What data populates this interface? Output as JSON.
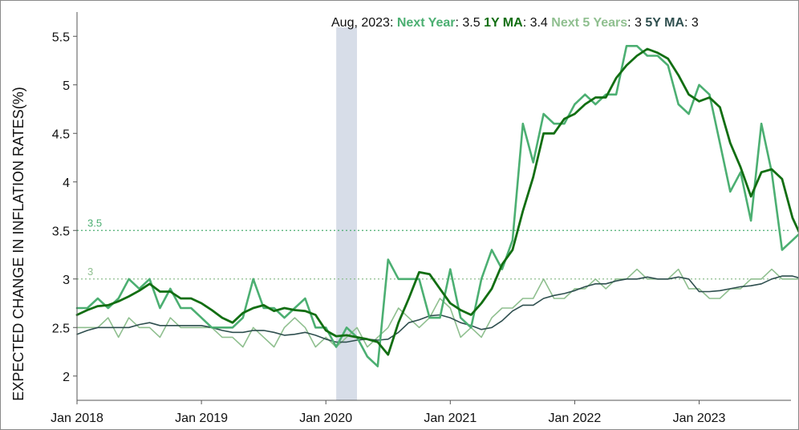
{
  "chart_data": {
    "type": "line",
    "ylabel": "EXPECTED CHANGE IN INFLATION RATES(%)",
    "ylim": [
      1.75,
      5.75
    ],
    "y_ticks": [
      "2",
      "2.5",
      "3",
      "3.5",
      "4",
      "4.5",
      "5",
      "5.5"
    ],
    "x_ticks": [
      "Jan 2018",
      "Jan 2019",
      "Jan 2020",
      "Jan 2021",
      "Jan 2022",
      "Jan 2023"
    ],
    "x_range": [
      "2018-01",
      "2023-08"
    ],
    "recession_band": {
      "start": "2020-02",
      "end": "2020-04"
    },
    "reference_lines": [
      {
        "value": 3.5,
        "label": "3.5",
        "color": "#4caf72"
      },
      {
        "value": 3,
        "label": "3",
        "color": "#8fbf8f"
      }
    ],
    "legend": {
      "date": "Aug, 2023:",
      "items": [
        {
          "name": "Next Year",
          "value": "3.5",
          "color": "#4caf72"
        },
        {
          "name": "1Y MA",
          "value": "3.4",
          "color": "#126e12"
        },
        {
          "name": "Next 5 Years",
          "value": "3",
          "color": "#8fbf8f"
        },
        {
          "name": "5Y MA",
          "value": "3",
          "color": "#2f4f4f"
        }
      ]
    },
    "series": [
      {
        "name": "Next Year",
        "color": "#4caf72",
        "width": 2.6,
        "end_marker": true,
        "values": [
          2.7,
          2.7,
          2.8,
          2.7,
          2.8,
          3.0,
          2.9,
          3.0,
          2.7,
          2.9,
          2.7,
          2.7,
          2.6,
          2.5,
          2.5,
          2.5,
          2.6,
          3.0,
          2.7,
          2.7,
          2.6,
          2.7,
          2.8,
          2.5,
          2.5,
          2.3,
          2.5,
          2.4,
          2.2,
          2.1,
          3.2,
          3.0,
          3.0,
          3.0,
          2.6,
          2.6,
          3.1,
          2.6,
          2.5,
          3.0,
          3.3,
          3.1,
          3.4,
          4.6,
          4.2,
          4.7,
          4.6,
          4.6,
          4.8,
          4.9,
          4.8,
          4.9,
          4.9,
          5.4,
          5.4,
          5.3,
          5.3,
          5.2,
          4.8,
          4.7,
          5.0,
          4.9,
          4.4,
          3.9,
          4.1,
          3.6,
          4.6,
          4.1,
          3.3,
          3.4,
          3.5
        ]
      },
      {
        "name": "1Y MA",
        "color": "#126e12",
        "width": 2.8,
        "end_marker": true,
        "values": [
          2.63,
          2.68,
          2.72,
          2.73,
          2.77,
          2.82,
          2.88,
          2.95,
          2.87,
          2.87,
          2.8,
          2.8,
          2.75,
          2.68,
          2.6,
          2.55,
          2.65,
          2.7,
          2.73,
          2.67,
          2.7,
          2.68,
          2.67,
          2.63,
          2.47,
          2.41,
          2.42,
          2.4,
          2.38,
          2.35,
          2.22,
          2.55,
          2.8,
          3.07,
          3.05,
          2.9,
          2.75,
          2.68,
          2.63,
          2.75,
          2.9,
          3.15,
          3.3,
          3.7,
          4.05,
          4.5,
          4.5,
          4.65,
          4.7,
          4.8,
          4.87,
          4.87,
          5.07,
          5.2,
          5.3,
          5.37,
          5.33,
          5.27,
          5.1,
          4.9,
          4.83,
          4.87,
          4.77,
          4.4,
          4.15,
          3.85,
          4.1,
          4.13,
          4.03,
          3.63,
          3.4
        ]
      },
      {
        "name": "Next 5 Years",
        "color": "#8fbf8f",
        "width": 1.6,
        "end_marker": false,
        "values": [
          2.5,
          2.5,
          2.5,
          2.6,
          2.4,
          2.6,
          2.5,
          2.5,
          2.4,
          2.6,
          2.5,
          2.5,
          2.5,
          2.5,
          2.4,
          2.4,
          2.3,
          2.5,
          2.4,
          2.3,
          2.5,
          2.6,
          2.5,
          2.3,
          2.4,
          2.3,
          2.4,
          2.5,
          2.3,
          2.4,
          2.5,
          2.7,
          2.6,
          2.5,
          2.6,
          2.8,
          2.7,
          2.4,
          2.5,
          2.4,
          2.6,
          2.7,
          2.7,
          2.8,
          2.8,
          3.0,
          2.8,
          2.8,
          2.9,
          2.9,
          3.0,
          2.9,
          3.0,
          3.0,
          3.1,
          3.0,
          3.0,
          3.0,
          3.1,
          2.9,
          2.9,
          2.8,
          2.8,
          2.9,
          2.9,
          3.0,
          3.0,
          3.1,
          3.0,
          3.0,
          3.0
        ]
      },
      {
        "name": "5Y MA",
        "color": "#2f4f4f",
        "width": 1.6,
        "end_marker": true,
        "values": [
          2.43,
          2.47,
          2.5,
          2.5,
          2.5,
          2.5,
          2.53,
          2.55,
          2.52,
          2.52,
          2.52,
          2.52,
          2.52,
          2.5,
          2.47,
          2.45,
          2.45,
          2.47,
          2.47,
          2.45,
          2.42,
          2.43,
          2.45,
          2.42,
          2.38,
          2.35,
          2.35,
          2.37,
          2.38,
          2.37,
          2.38,
          2.45,
          2.55,
          2.58,
          2.62,
          2.63,
          2.6,
          2.55,
          2.52,
          2.48,
          2.5,
          2.57,
          2.67,
          2.73,
          2.73,
          2.8,
          2.83,
          2.85,
          2.88,
          2.92,
          2.95,
          2.95,
          2.98,
          3.0,
          3.0,
          3.02,
          3.0,
          3.0,
          3.02,
          3.0,
          2.87,
          2.87,
          2.88,
          2.9,
          2.92,
          2.93,
          2.95,
          3.0,
          3.03,
          3.03,
          3.0
        ]
      }
    ]
  }
}
